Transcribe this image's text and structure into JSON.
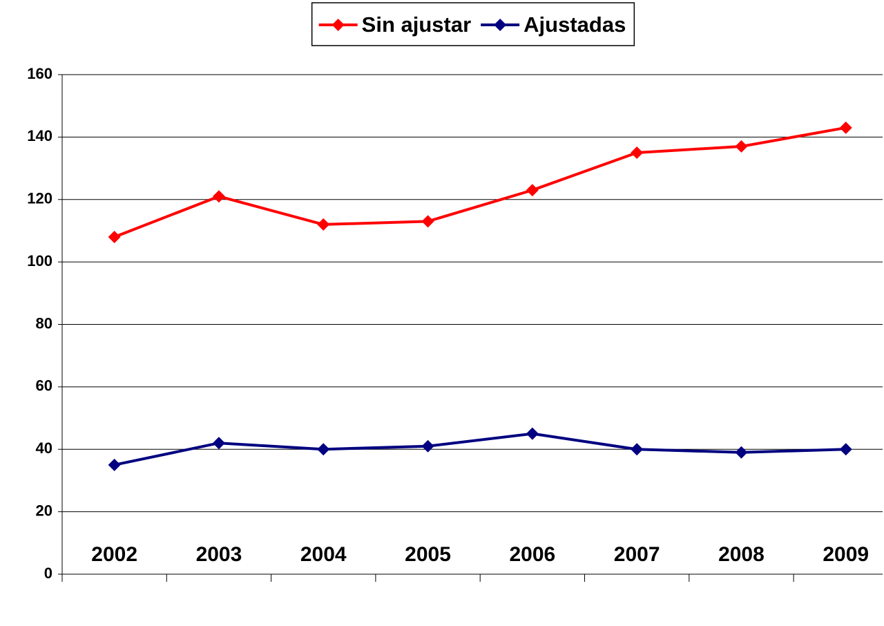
{
  "chart_data": {
    "type": "line",
    "categories": [
      "2002",
      "2003",
      "2004",
      "2005",
      "2006",
      "2007",
      "2008",
      "2009"
    ],
    "series": [
      {
        "name": "Sin ajustar",
        "color": "#ff0000",
        "values": [
          108,
          121,
          112,
          113,
          123,
          135,
          137,
          143
        ]
      },
      {
        "name": "Ajustadas",
        "color": "#000080",
        "values": [
          35,
          42,
          40,
          41,
          45,
          40,
          39,
          40
        ]
      }
    ],
    "ylim": [
      0,
      160
    ],
    "yticks": [
      0,
      20,
      40,
      60,
      80,
      100,
      120,
      140,
      160
    ],
    "grid": true,
    "legend": "top"
  }
}
